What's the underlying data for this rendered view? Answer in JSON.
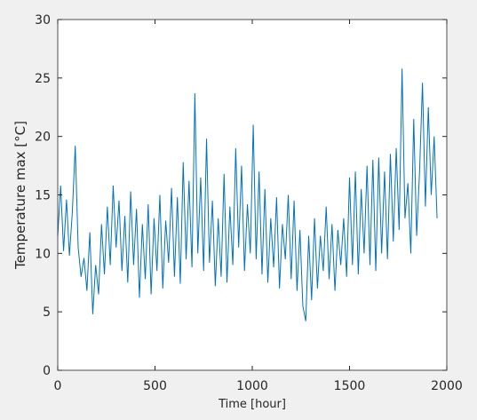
{
  "chart_data": {
    "type": "line",
    "xlabel": "Time [hour]",
    "ylabel": "Temperature max [°C]",
    "xlim": [
      0,
      2000
    ],
    "xticks": [
      0,
      500,
      1000,
      1500,
      2000
    ],
    "ylim": [
      0,
      30
    ],
    "yticks": [
      0,
      5,
      10,
      15,
      20,
      25,
      30
    ],
    "x": [
      0,
      15,
      30,
      45,
      60,
      75,
      90,
      105,
      120,
      135,
      150,
      165,
      180,
      195,
      210,
      225,
      240,
      255,
      270,
      285,
      300,
      315,
      330,
      345,
      360,
      375,
      390,
      405,
      420,
      435,
      450,
      465,
      480,
      495,
      510,
      525,
      540,
      555,
      570,
      585,
      600,
      615,
      630,
      645,
      660,
      675,
      690,
      705,
      720,
      735,
      750,
      765,
      780,
      795,
      810,
      825,
      840,
      855,
      870,
      885,
      900,
      915,
      930,
      945,
      960,
      975,
      990,
      1005,
      1020,
      1035,
      1050,
      1065,
      1080,
      1095,
      1110,
      1125,
      1140,
      1155,
      1170,
      1185,
      1200,
      1215,
      1230,
      1245,
      1260,
      1275,
      1290,
      1305,
      1320,
      1335,
      1350,
      1365,
      1380,
      1395,
      1410,
      1425,
      1440,
      1455,
      1470,
      1485,
      1500,
      1515,
      1530,
      1545,
      1560,
      1575,
      1590,
      1605,
      1620,
      1635,
      1650,
      1665,
      1680,
      1695,
      1710,
      1725,
      1740,
      1755,
      1770,
      1785,
      1800,
      1815,
      1830,
      1845,
      1860,
      1875,
      1890,
      1905,
      1920,
      1935,
      1950
    ],
    "series": [
      {
        "name": "Temperature max",
        "color": "#0072bd",
        "values": [
          11.5,
          15.8,
          10.2,
          14.6,
          9.8,
          13.5,
          19.2,
          10.5,
          8.0,
          9.6,
          6.8,
          11.8,
          4.8,
          9.0,
          6.5,
          12.5,
          8.2,
          14.0,
          9.0,
          15.8,
          10.5,
          14.5,
          8.5,
          13.2,
          7.5,
          15.3,
          9.0,
          13.8,
          6.2,
          12.5,
          7.8,
          14.2,
          6.5,
          13.0,
          8.5,
          15.0,
          7.0,
          12.8,
          9.2,
          15.6,
          8.0,
          14.8,
          7.4,
          17.8,
          9.5,
          16.2,
          8.8,
          23.7,
          10.0,
          16.5,
          8.5,
          19.8,
          9.2,
          14.5,
          7.2,
          13.0,
          8.0,
          16.8,
          7.5,
          14.0,
          9.0,
          19.0,
          10.5,
          17.5,
          8.5,
          14.2,
          10.0,
          21.0,
          9.5,
          17.0,
          8.2,
          15.5,
          7.5,
          13.0,
          8.8,
          14.8,
          7.0,
          12.5,
          9.5,
          15.0,
          7.8,
          14.5,
          6.8,
          12.0,
          5.5,
          4.2,
          11.5,
          6.0,
          13.0,
          7.0,
          11.5,
          8.5,
          14.0,
          7.8,
          12.5,
          6.8,
          12.0,
          9.0,
          13.0,
          8.0,
          16.5,
          9.0,
          17.0,
          8.2,
          15.5,
          10.0,
          17.5,
          9.0,
          18.0,
          8.5,
          18.2,
          10.0,
          17.0,
          9.5,
          18.5,
          11.0,
          19.0,
          12.0,
          25.8,
          13.0,
          16.0,
          10.0,
          21.5,
          11.5,
          17.0,
          24.6,
          14.0,
          22.5,
          15.0,
          20.0,
          13.0
        ]
      }
    ]
  }
}
